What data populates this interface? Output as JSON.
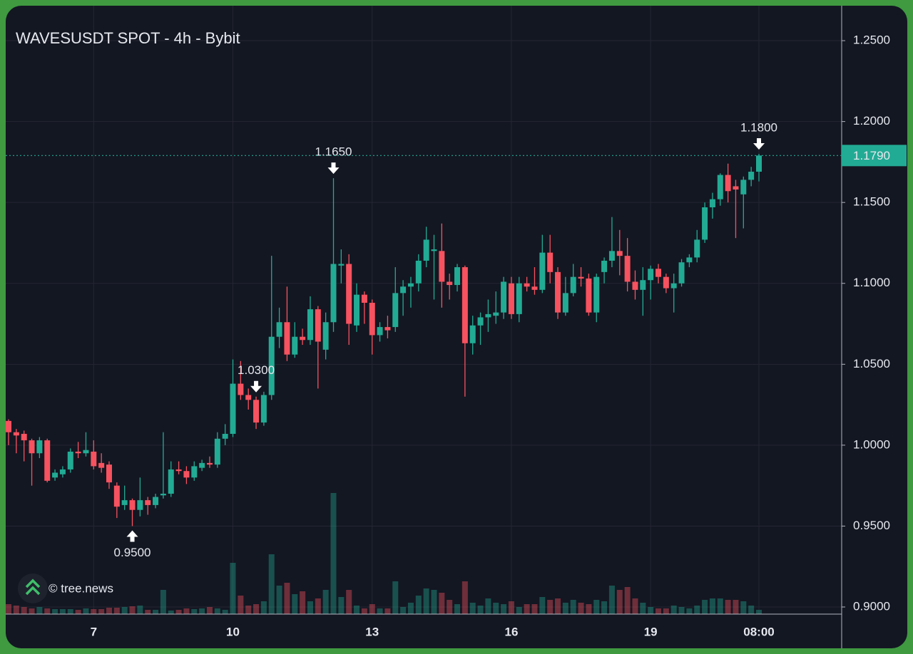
{
  "chart_data": {
    "type": "candlestick",
    "title": "WAVESUSDT SPOT - 4h - Bybit",
    "watermark": "© tree.news",
    "categories": [
      null,
      null,
      null,
      null,
      null,
      null,
      null,
      null,
      null,
      null,
      null,
      "7",
      null,
      null,
      null,
      null,
      null,
      null,
      null,
      null,
      null,
      null,
      null,
      null,
      null,
      null,
      null,
      null,
      null,
      "10",
      null,
      null,
      null,
      null,
      null,
      null,
      null,
      null,
      null,
      null,
      null,
      null,
      null,
      null,
      null,
      null,
      null,
      "13",
      null,
      null,
      null,
      null,
      null,
      null,
      null,
      null,
      null,
      null,
      null,
      null,
      null,
      null,
      null,
      null,
      null,
      "16",
      null,
      null,
      null,
      null,
      null,
      null,
      null,
      null,
      null,
      null,
      null,
      null,
      null,
      null,
      null,
      null,
      null,
      "19",
      null,
      null,
      null,
      null,
      null,
      null,
      null,
      null,
      null,
      null,
      null,
      null,
      null,
      "08:00"
    ],
    "open": [
      1.015,
      1.008,
      1.007,
      1.003,
      0.995,
      1.003,
      0.98,
      0.982,
      0.985,
      0.996,
      0.995,
      0.996,
      0.989,
      0.988,
      0.975,
      0.963,
      0.966,
      0.96,
      0.966,
      0.963,
      0.969,
      0.97,
      0.985,
      0.984,
      0.98,
      0.986,
      0.989,
      0.988,
      1.004,
      1.007,
      1.038,
      1.031,
      1.028,
      1.014,
      1.031,
      1.067,
      1.076,
      1.056,
      1.067,
      1.065,
      1.084,
      1.059,
      1.076,
      1.111,
      1.112,
      1.074,
      1.093,
      1.088,
      1.068,
      1.073,
      1.073,
      1.094,
      1.098,
      1.1,
      1.114,
      1.12,
      1.12,
      1.101,
      1.099,
      1.11,
      1.063,
      1.074,
      1.079,
      1.08,
      1.082,
      1.1,
      1.081,
      1.1,
      1.098,
      1.096,
      1.119,
      1.107,
      1.082,
      1.094,
      1.104,
      1.103,
      1.082,
      1.107,
      1.114,
      1.12,
      1.117,
      1.101,
      1.096,
      1.102,
      1.109,
      1.104,
      1.097,
      1.1,
      1.113,
      1.116,
      1.127,
      1.147,
      1.152,
      1.167,
      1.16,
      1.155,
      1.164,
      1.169
    ],
    "high": [
      1.016,
      1.01,
      1.009,
      1.004,
      1.005,
      1.004,
      0.985,
      0.987,
      0.998,
      1.002,
      1.008,
      1.003,
      0.995,
      0.99,
      0.977,
      0.975,
      0.967,
      0.98,
      0.968,
      0.97,
      1.008,
      0.99,
      0.99,
      0.987,
      0.99,
      0.991,
      0.993,
      1.008,
      1.013,
      1.053,
      1.052,
      1.035,
      1.03,
      1.033,
      1.117,
      1.085,
      1.098,
      1.076,
      1.072,
      1.092,
      1.086,
      1.082,
      1.165,
      1.121,
      1.118,
      1.1,
      1.095,
      1.09,
      1.076,
      1.08,
      1.11,
      1.102,
      1.104,
      1.118,
      1.135,
      1.13,
      1.137,
      1.106,
      1.112,
      1.111,
      1.08,
      1.082,
      1.09,
      1.095,
      1.104,
      1.104,
      1.104,
      1.104,
      1.11,
      1.13,
      1.13,
      1.11,
      1.104,
      1.112,
      1.11,
      1.106,
      1.106,
      1.116,
      1.141,
      1.133,
      1.128,
      1.108,
      1.11,
      1.111,
      1.112,
      1.106,
      1.106,
      1.115,
      1.118,
      1.133,
      1.15,
      1.156,
      1.168,
      1.174,
      1.164,
      1.166,
      1.172,
      1.18
    ],
    "low": [
      1.0,
      0.995,
      0.99,
      0.975,
      0.992,
      0.977,
      0.978,
      0.98,
      0.983,
      0.992,
      0.993,
      0.985,
      0.983,
      0.973,
      0.955,
      0.96,
      0.95,
      0.956,
      0.957,
      0.961,
      0.967,
      0.968,
      0.982,
      0.976,
      0.978,
      0.984,
      0.986,
      0.986,
      1.0,
      1.005,
      1.028,
      1.022,
      1.01,
      1.012,
      1.028,
      1.06,
      1.052,
      1.054,
      1.062,
      1.062,
      1.035,
      1.053,
      1.07,
      1.1,
      1.062,
      1.07,
      1.075,
      1.056,
      1.064,
      1.066,
      1.07,
      1.08,
      1.085,
      1.095,
      1.11,
      1.09,
      1.085,
      1.09,
      1.095,
      1.03,
      1.056,
      1.062,
      1.07,
      1.075,
      1.078,
      1.078,
      1.076,
      1.095,
      1.093,
      1.094,
      1.1,
      1.078,
      1.08,
      1.092,
      1.098,
      1.08,
      1.076,
      1.1,
      1.11,
      1.105,
      1.095,
      1.09,
      1.08,
      1.09,
      1.1,
      1.094,
      1.082,
      1.098,
      1.11,
      1.113,
      1.125,
      1.14,
      1.148,
      1.15,
      1.128,
      1.134,
      1.16,
      1.163
    ],
    "close": [
      1.008,
      1.006,
      1.003,
      0.995,
      1.003,
      0.978,
      0.983,
      0.985,
      0.996,
      0.995,
      0.997,
      0.987,
      0.986,
      0.977,
      0.962,
      0.966,
      0.96,
      0.966,
      0.963,
      0.968,
      0.97,
      0.985,
      0.984,
      0.98,
      0.987,
      0.989,
      0.988,
      1.004,
      1.007,
      1.038,
      1.031,
      1.028,
      1.014,
      1.031,
      1.067,
      1.076,
      1.056,
      1.067,
      1.065,
      1.084,
      1.064,
      1.076,
      1.112,
      1.112,
      1.075,
      1.093,
      1.088,
      1.068,
      1.073,
      1.071,
      1.094,
      1.098,
      1.1,
      1.114,
      1.127,
      1.121,
      1.101,
      1.099,
      1.11,
      1.063,
      1.074,
      1.079,
      1.081,
      1.082,
      1.101,
      1.081,
      1.1,
      1.098,
      1.096,
      1.119,
      1.107,
      1.082,
      1.094,
      1.104,
      1.103,
      1.082,
      1.104,
      1.114,
      1.12,
      1.117,
      1.101,
      1.096,
      1.102,
      1.109,
      1.104,
      1.097,
      1.1,
      1.113,
      1.116,
      1.127,
      1.147,
      1.152,
      1.167,
      1.157,
      1.158,
      1.164,
      1.169,
      1.179
    ],
    "volume": [
      14,
      12,
      10,
      8,
      10,
      8,
      7,
      7,
      7,
      6,
      8,
      7,
      7,
      9,
      9,
      10,
      11,
      12,
      6,
      6,
      34,
      5,
      6,
      8,
      7,
      8,
      10,
      8,
      6,
      72,
      26,
      12,
      14,
      18,
      84,
      40,
      44,
      28,
      32,
      18,
      22,
      34,
      170,
      24,
      34,
      12,
      8,
      14,
      8,
      8,
      46,
      10,
      16,
      26,
      36,
      34,
      30,
      20,
      14,
      46,
      16,
      12,
      22,
      16,
      14,
      18,
      10,
      14,
      14,
      24,
      20,
      22,
      16,
      20,
      16,
      14,
      20,
      18,
      40,
      34,
      38,
      22,
      16,
      10,
      8,
      8,
      12,
      10,
      8,
      12,
      20,
      22,
      22,
      20,
      20,
      18,
      12,
      6
    ],
    "up_color": "#22ab94",
    "down_color": "#f7525f",
    "ylim": [
      0.8956,
      1.2716
    ],
    "yticks": [
      {
        "value": 0.9,
        "label": "0.9000"
      },
      {
        "value": 0.95,
        "label": "0.9500"
      },
      {
        "value": 1.0,
        "label": "1.0000"
      },
      {
        "value": 1.05,
        "label": "1.0500"
      },
      {
        "value": 1.1,
        "label": "1.1000"
      },
      {
        "value": 1.15,
        "label": "1.1500"
      },
      {
        "value": 1.2,
        "label": "1.2000"
      },
      {
        "value": 1.25,
        "label": "1.2500"
      }
    ],
    "grid": true,
    "annotations": [
      {
        "value": 0.95,
        "label": "0.9500"
      },
      {
        "value": 1.165,
        "label": "1.1650"
      },
      {
        "value": 1.03,
        "label": "1.0300"
      },
      {
        "value": 1.18,
        "label": "1.1800"
      }
    ],
    "last_price": {
      "value": 1.179,
      "label": "1.1790"
    }
  }
}
